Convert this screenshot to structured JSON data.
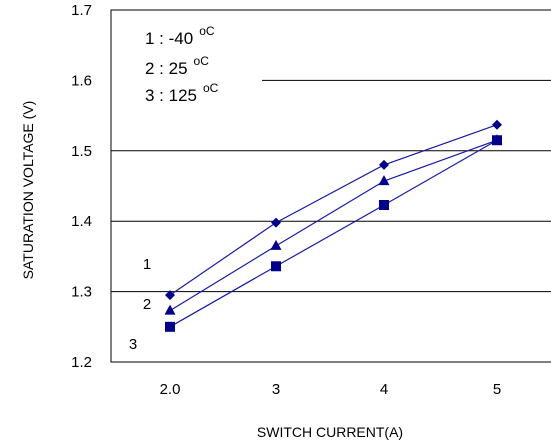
{
  "chart_data": {
    "type": "line",
    "xlabel": "SWITCH CURRENT(A)",
    "ylabel": "SATURATION VOLTAGE (V)",
    "ylim": [
      1.2,
      1.7
    ],
    "yticks": [
      "1.2",
      "1.3",
      "1.4",
      "1.5",
      "1.6",
      "1.7"
    ],
    "categories": [
      "2.0",
      "3",
      "4",
      "5"
    ],
    "grid": "horizontal",
    "line_color": "#1a1aa6",
    "marker_color": "#00008b",
    "legend": {
      "position": "top-left",
      "entries": [
        {
          "text": "1 : -40",
          "unit": "oC"
        },
        {
          "text": "2 : 25",
          "unit": "oC"
        },
        {
          "text": "3 : 125",
          "unit": "oC"
        }
      ]
    },
    "series": [
      {
        "label": "1",
        "marker": "diamond",
        "values": [
          1.295,
          1.398,
          1.48,
          1.537
        ]
      },
      {
        "label": "2",
        "marker": "triangle",
        "values": [
          1.273,
          1.365,
          1.457,
          1.515
        ]
      },
      {
        "label": "3",
        "marker": "square",
        "values": [
          1.25,
          1.336,
          1.423,
          1.515
        ]
      }
    ]
  }
}
